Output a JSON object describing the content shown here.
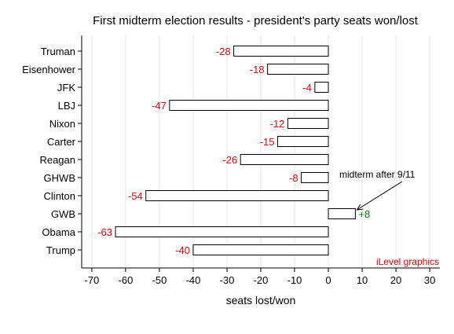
{
  "chart_data": {
    "type": "bar",
    "orientation": "horizontal",
    "title": "First midterm election results - president's party seats won/lost",
    "xlabel": "seats lost/won",
    "ylabel": "",
    "xlim": [
      -73,
      33
    ],
    "xticks": [
      -70,
      -60,
      -50,
      -40,
      -30,
      -20,
      -10,
      0,
      10,
      20,
      30
    ],
    "grid": "vertical",
    "categories": [
      "Truman",
      "Eisenhower",
      "JFK",
      "LBJ",
      "Nixon",
      "Carter",
      "Reagan",
      "GHWB",
      "Clinton",
      "GWB",
      "Obama",
      "Trump"
    ],
    "values": [
      -28,
      -18,
      -4,
      -47,
      -12,
      -15,
      -26,
      -8,
      -54,
      8,
      -63,
      -40
    ],
    "value_labels": [
      "-28",
      "-18",
      "-4",
      "-47",
      "-12",
      "-15",
      "-26",
      "-8",
      "-54",
      "+8",
      "-63",
      "-40"
    ],
    "colors": {
      "negative_label": "#e8000b",
      "positive_label": "#008000",
      "bar_fill": "#ffffff",
      "bar_stroke": "#000000",
      "grid": "#e6e6e6",
      "credit": "#e8000b"
    },
    "annotation": {
      "text": "midterm after 9/11",
      "target_category": "GWB"
    },
    "credit": "iLevel graphics"
  }
}
